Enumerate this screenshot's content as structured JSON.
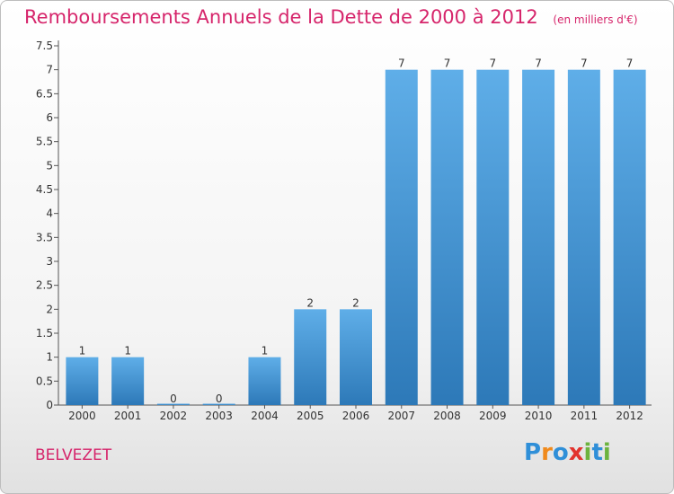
{
  "title": "Remboursements Annuels de la Dette de 2000 à 2012",
  "unit": "(en milliers d'€)",
  "commune": "BELVEZET",
  "logo": {
    "letters": [
      {
        "char": "P",
        "color": "#2f8fd8"
      },
      {
        "char": "r",
        "color": "#f08a1c"
      },
      {
        "char": "o",
        "color": "#2f8fd8"
      },
      {
        "char": "x",
        "color": "#e2332e"
      },
      {
        "char": "i",
        "color": "#6cb33e"
      },
      {
        "char": "t",
        "color": "#2f8fd8"
      },
      {
        "char": "i",
        "color": "#6cb33e"
      }
    ]
  },
  "colors": {
    "bar_top": "#5faee8",
    "bar_bottom": "#2d79b8",
    "text_accent": "#d6256b"
  },
  "chart_data": {
    "type": "bar",
    "categories": [
      "2000",
      "2001",
      "2002",
      "2003",
      "2004",
      "2005",
      "2006",
      "2007",
      "2008",
      "2009",
      "2010",
      "2011",
      "2012"
    ],
    "values": [
      1,
      1,
      0,
      0,
      1,
      2,
      2,
      7,
      7,
      7,
      7,
      7,
      7
    ],
    "data_labels": [
      "1",
      "1",
      "0",
      "0",
      "1",
      "2",
      "2",
      "7",
      "7",
      "7",
      "7",
      "7",
      "7"
    ],
    "y_ticks": [
      "0",
      "0.5",
      "1",
      "1.5",
      "2",
      "2.5",
      "3",
      "3.5",
      "4",
      "4.5",
      "5",
      "5.5",
      "6",
      "6.5",
      "7",
      "7.5"
    ],
    "ylim": [
      0,
      7.5
    ],
    "grid": false,
    "legend": "none"
  }
}
